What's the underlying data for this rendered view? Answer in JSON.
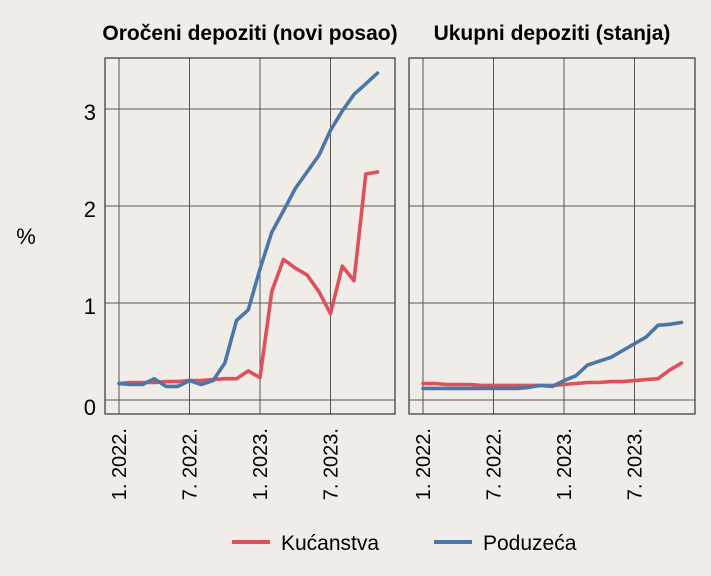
{
  "ylabel": "%",
  "legend": [
    {
      "name": "Kućanstva",
      "color": "#e0505a"
    },
    {
      "name": "Poduzeća",
      "color": "#4a76a8"
    }
  ],
  "chart_data": [
    {
      "type": "line",
      "title": "Oročeni depoziti (novi posao)",
      "ylim": [
        0,
        3.6
      ],
      "yticks": [
        "0",
        "1",
        "2",
        "3"
      ],
      "xticks": [
        "1. 2022.",
        "7. 2022.",
        "1. 2023.",
        "7. 2023."
      ],
      "x": [
        "2022-01",
        "2022-02",
        "2022-03",
        "2022-04",
        "2022-05",
        "2022-06",
        "2022-07",
        "2022-08",
        "2022-09",
        "2022-10",
        "2022-11",
        "2022-12",
        "2023-01",
        "2023-02",
        "2023-03",
        "2023-04",
        "2023-05",
        "2023-06",
        "2023-07",
        "2023-08",
        "2023-09",
        "2023-10",
        "2023-11"
      ],
      "series": [
        {
          "name": "Kućanstva",
          "values": [
            0.17,
            0.18,
            0.18,
            0.18,
            0.19,
            0.19,
            0.2,
            0.2,
            0.21,
            0.22,
            0.22,
            0.3,
            0.23,
            1.12,
            1.45,
            1.36,
            1.29,
            1.12,
            0.89,
            1.38,
            1.23,
            2.33,
            2.35
          ]
        },
        {
          "name": "Poduzeća",
          "values": [
            0.17,
            0.16,
            0.16,
            0.22,
            0.14,
            0.14,
            0.2,
            0.16,
            0.2,
            0.38,
            0.82,
            0.93,
            1.35,
            1.73,
            1.95,
            2.18,
            2.35,
            2.52,
            2.78,
            2.98,
            3.15,
            3.26,
            3.37
          ]
        }
      ]
    },
    {
      "type": "line",
      "title": "Ukupni depoziti (stanja)",
      "ylim": [
        0,
        3.6
      ],
      "xticks": [
        "1. 2022.",
        "7. 2022.",
        "1. 2023.",
        "7. 2023."
      ],
      "x": [
        "2022-01",
        "2022-02",
        "2022-03",
        "2022-04",
        "2022-05",
        "2022-06",
        "2022-07",
        "2022-08",
        "2022-09",
        "2022-10",
        "2022-11",
        "2022-12",
        "2023-01",
        "2023-02",
        "2023-03",
        "2023-04",
        "2023-05",
        "2023-06",
        "2023-07",
        "2023-08",
        "2023-09",
        "2023-10",
        "2023-11"
      ],
      "series": [
        {
          "name": "Kućanstva",
          "values": [
            0.17,
            0.17,
            0.16,
            0.16,
            0.16,
            0.15,
            0.15,
            0.15,
            0.15,
            0.15,
            0.15,
            0.15,
            0.16,
            0.17,
            0.18,
            0.18,
            0.19,
            0.19,
            0.2,
            0.21,
            0.22,
            0.31,
            0.38
          ]
        },
        {
          "name": "Poduzeća",
          "values": [
            0.12,
            0.12,
            0.12,
            0.12,
            0.12,
            0.12,
            0.12,
            0.12,
            0.12,
            0.13,
            0.15,
            0.14,
            0.2,
            0.25,
            0.36,
            0.4,
            0.44,
            0.51,
            0.58,
            0.65,
            0.77,
            0.78,
            0.8
          ]
        }
      ]
    }
  ]
}
